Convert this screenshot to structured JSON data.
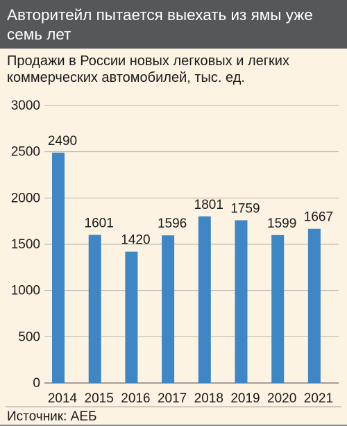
{
  "header": {
    "title": "Авторитейл пытается выехать из ямы уже семь лет"
  },
  "source": "Источник: АЕБ",
  "colors": {
    "bar": "#3e86c5",
    "header_bg": "#55575a",
    "background": "#fdf3e2",
    "grid": "#b7b4ad"
  },
  "chart_data": {
    "type": "bar",
    "title": "Продажи в России новых легковых и легких коммерческих автомобилей, тыс. ед.",
    "categories": [
      "2014",
      "2015",
      "2016",
      "2017",
      "2018",
      "2019",
      "2020",
      "2021"
    ],
    "values": [
      2490,
      1601,
      1420,
      1596,
      1801,
      1759,
      1599,
      1667
    ],
    "data_labels": [
      "2490",
      "1601",
      "1420",
      "1596",
      "1801",
      "1759",
      "1599",
      "1667"
    ],
    "yticks": [
      0,
      500,
      1000,
      1500,
      2000,
      2500,
      3000
    ],
    "ytick_labels": [
      "0",
      "500",
      "1000",
      "1500",
      "2000",
      "2500",
      "3000"
    ],
    "ylim": [
      0,
      3000
    ],
    "grid": true
  }
}
